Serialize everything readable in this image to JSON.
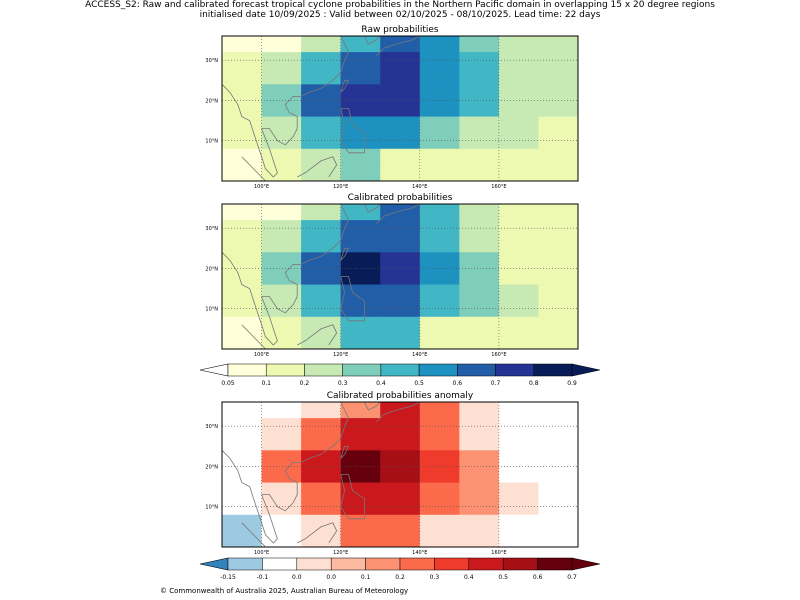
{
  "header": {
    "line1": "ACCESS_S2: Raw and calibrated forecast tropical cyclone probabilities in the Northern Pacific domain in overlapping 15 x 20 degree regions",
    "line2": "initialised date 10/09/2025 :  Valid between 02/10/2025 - 08/10/2025. Lead time: 22 days"
  },
  "footer": "© Commonwealth of Australia 2025, Australian Bureau of Meteorology",
  "chart_data": [
    {
      "type": "heatmap",
      "title": "Raw probabilities",
      "x_ticks": [
        "100°E",
        "120°E",
        "140°E",
        "160°E"
      ],
      "y_ticks": [
        "30°N",
        "20°N",
        "10°N"
      ],
      "x_range": [
        90,
        180
      ],
      "y_range": [
        0,
        36
      ],
      "cell_columns_lon_start": [
        90,
        100,
        110,
        120,
        130,
        140,
        150,
        160,
        170
      ],
      "cell_rows_lat_start": [
        32,
        28,
        24,
        20,
        16,
        12,
        8,
        4,
        0
      ],
      "values": [
        [
          0.05,
          0.05,
          0.2,
          0.4,
          0.6,
          0.5,
          0.3,
          0.2,
          0.2
        ],
        [
          0.1,
          0.2,
          0.4,
          0.6,
          0.7,
          0.5,
          0.4,
          0.2,
          0.2
        ],
        [
          0.1,
          0.2,
          0.4,
          0.6,
          0.7,
          0.5,
          0.4,
          0.2,
          0.2
        ],
        [
          0.1,
          0.3,
          0.6,
          0.7,
          0.7,
          0.5,
          0.4,
          0.2,
          0.2
        ],
        [
          0.1,
          0.3,
          0.6,
          0.7,
          0.7,
          0.5,
          0.4,
          0.2,
          0.2
        ],
        [
          0.1,
          0.2,
          0.4,
          0.5,
          0.5,
          0.3,
          0.2,
          0.2,
          0.1
        ],
        [
          0.1,
          0.2,
          0.4,
          0.5,
          0.5,
          0.3,
          0.2,
          0.2,
          0.1
        ],
        [
          0.05,
          0.1,
          0.2,
          0.3,
          0.1,
          0.1,
          0.1,
          0.1,
          0.1
        ],
        [
          0.05,
          0.1,
          0.2,
          0.3,
          0.1,
          0.1,
          0.1,
          0.1,
          0.1
        ]
      ]
    },
    {
      "type": "heatmap",
      "title": "Calibrated probabilities",
      "x_ticks": [
        "100°E",
        "120°E",
        "140°E",
        "160°E"
      ],
      "y_ticks": [
        "30°N",
        "20°N",
        "10°N"
      ],
      "x_range": [
        90,
        180
      ],
      "y_range": [
        0,
        36
      ],
      "cell_columns_lon_start": [
        90,
        100,
        110,
        120,
        130,
        140,
        150,
        160,
        170
      ],
      "cell_rows_lat_start": [
        32,
        28,
        24,
        20,
        16,
        12,
        8,
        4,
        0
      ],
      "values": [
        [
          0.05,
          0.05,
          0.2,
          0.4,
          0.6,
          0.4,
          0.2,
          0.1,
          0.1
        ],
        [
          0.1,
          0.2,
          0.4,
          0.6,
          0.6,
          0.4,
          0.2,
          0.1,
          0.1
        ],
        [
          0.1,
          0.2,
          0.4,
          0.6,
          0.6,
          0.4,
          0.2,
          0.1,
          0.1
        ],
        [
          0.1,
          0.3,
          0.6,
          0.8,
          0.7,
          0.5,
          0.3,
          0.1,
          0.1
        ],
        [
          0.1,
          0.3,
          0.6,
          0.8,
          0.7,
          0.5,
          0.3,
          0.1,
          0.1
        ],
        [
          0.1,
          0.2,
          0.4,
          0.6,
          0.6,
          0.4,
          0.3,
          0.2,
          0.1
        ],
        [
          0.1,
          0.2,
          0.4,
          0.6,
          0.6,
          0.4,
          0.3,
          0.2,
          0.1
        ],
        [
          0.05,
          0.1,
          0.2,
          0.4,
          0.4,
          0.1,
          0.1,
          0.1,
          0.1
        ],
        [
          0.05,
          0.1,
          0.2,
          0.4,
          0.4,
          0.1,
          0.1,
          0.1,
          0.1
        ]
      ]
    },
    {
      "type": "heatmap",
      "title": "Calibrated probabilities anomaly",
      "x_ticks": [
        "100°E",
        "120°E",
        "140°E",
        "160°E"
      ],
      "y_ticks": [
        "30°N",
        "20°N",
        "10°N"
      ],
      "x_range": [
        90,
        180
      ],
      "y_range": [
        0,
        36
      ],
      "cell_columns_lon_start": [
        90,
        100,
        110,
        120,
        130,
        140,
        150,
        160,
        170
      ],
      "cell_rows_lat_start": [
        32,
        28,
        24,
        20,
        16,
        12,
        8,
        4,
        0
      ],
      "values": [
        [
          -0.1,
          -0.1,
          0.0,
          0.1,
          0.4,
          0.2,
          0.0,
          -0.05,
          -0.05
        ],
        [
          -0.05,
          0.0,
          0.2,
          0.4,
          0.4,
          0.2,
          0.0,
          -0.05,
          -0.05
        ],
        [
          -0.05,
          0.0,
          0.2,
          0.4,
          0.4,
          0.2,
          0.0,
          -0.05,
          -0.05
        ],
        [
          -0.05,
          0.2,
          0.4,
          0.6,
          0.5,
          0.3,
          0.1,
          -0.05,
          -0.05
        ],
        [
          -0.05,
          0.2,
          0.4,
          0.6,
          0.5,
          0.3,
          0.1,
          -0.05,
          -0.05
        ],
        [
          -0.1,
          0.0,
          0.2,
          0.4,
          0.4,
          0.2,
          0.1,
          0.0,
          -0.05
        ],
        [
          -0.1,
          0.0,
          0.2,
          0.4,
          0.4,
          0.2,
          0.1,
          0.0,
          -0.05
        ],
        [
          -0.15,
          -0.05,
          0.0,
          0.2,
          0.2,
          0.0,
          0.0,
          -0.05,
          -0.05
        ],
        [
          -0.15,
          -0.05,
          0.0,
          0.2,
          0.2,
          0.0,
          0.0,
          -0.05,
          -0.05
        ]
      ]
    }
  ],
  "colorbars": [
    {
      "labels": [
        "0.05",
        "0.1",
        "0.2",
        "0.3",
        "0.4",
        "0.5",
        "0.6",
        "0.7",
        "0.8",
        "0.9"
      ],
      "bounds": [
        0.05,
        0.1,
        0.2,
        0.3,
        0.4,
        0.5,
        0.6,
        0.7,
        0.8,
        0.9
      ],
      "colors": [
        "#ffffd9",
        "#edf8b1",
        "#c7e9b4",
        "#7fcdbb",
        "#41b6c4",
        "#1d91c0",
        "#225ea8",
        "#253494",
        "#081d58"
      ],
      "under_color": "#ffffff",
      "over_color": "#081d58"
    },
    {
      "labels": [
        "-0.15",
        "-0.1",
        "0.0",
        "0.0",
        "0.1",
        "0.2",
        "0.3",
        "0.4",
        "0.5",
        "0.6",
        "0.7"
      ],
      "bounds": [
        -0.15,
        -0.1,
        -0.01,
        0.01,
        0.1,
        0.2,
        0.3,
        0.4,
        0.5,
        0.6,
        0.7
      ],
      "colors": [
        "#9ecae1",
        "#ffffff",
        "#fee0d2",
        "#fcbba1",
        "#fc9272",
        "#fb6a4a",
        "#ef3b2c",
        "#cb181d",
        "#a50f15",
        "#67000d"
      ],
      "under_color": "#3182bd",
      "over_color": "#67000d"
    }
  ]
}
